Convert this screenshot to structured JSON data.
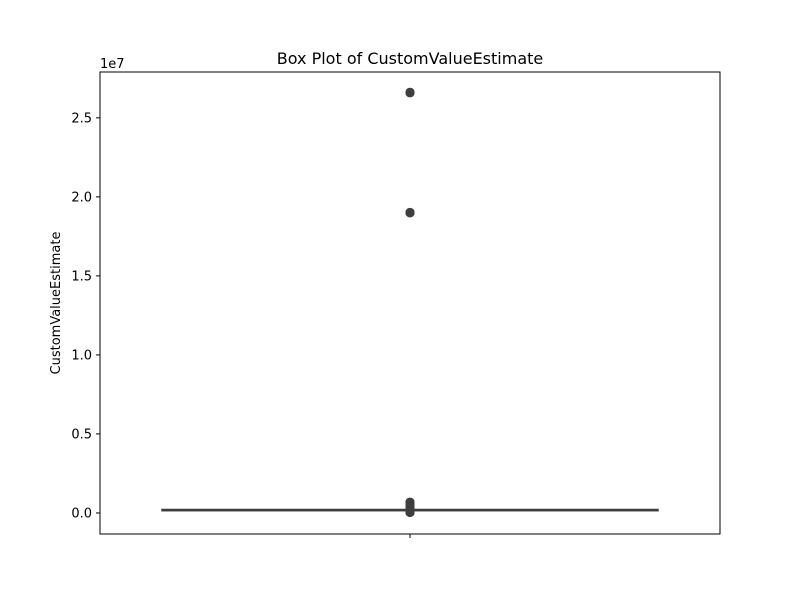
{
  "chart_data": {
    "type": "box",
    "title": "Box Plot of CustomValueEstimate",
    "xlabel": "",
    "ylabel": "CustomValueEstimate",
    "y_offset_text": "1e7",
    "ylim": [
      -1330000,
      27900000
    ],
    "yticks": [
      0,
      5000000,
      10000000,
      15000000,
      20000000,
      25000000
    ],
    "ytick_labels": [
      "0.0",
      "0.5",
      "1.0",
      "1.5",
      "2.0",
      "2.5"
    ],
    "grid": false,
    "legend": "none",
    "box": {
      "q1": 190000,
      "median": 200000,
      "q3": 220000,
      "whisker_low": 170000,
      "whisker_high": 230000
    },
    "outliers": [
      26650000,
      26600000,
      26550000,
      19050000,
      19000000,
      18950000,
      720000,
      680000,
      640000,
      600000,
      560000,
      520000,
      480000,
      440000,
      400000,
      360000,
      320000,
      280000,
      150000,
      120000,
      90000,
      60000,
      40000,
      20000,
      5000,
      0
    ],
    "colors": {
      "box_fill": "#3a75b0",
      "line": "#3f3f3f",
      "outlier": "#3f3f3f"
    }
  }
}
